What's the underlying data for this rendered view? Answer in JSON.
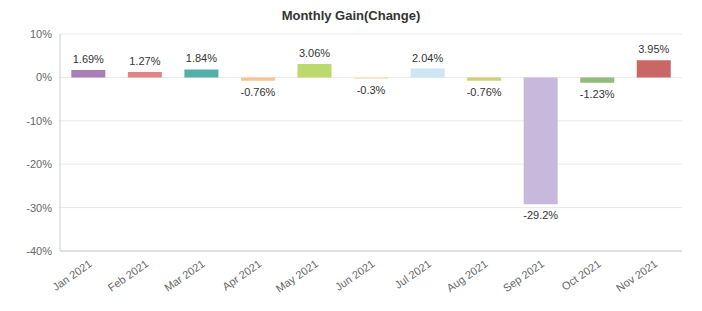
{
  "chart_data": {
    "type": "bar",
    "title": "Monthly Gain(Change)",
    "categories": [
      "Jan 2021",
      "Feb 2021",
      "Mar 2021",
      "Apr 2021",
      "May 2021",
      "Jun 2021",
      "Jul 2021",
      "Aug 2021",
      "Sep 2021",
      "Oct 2021",
      "Nov 2021"
    ],
    "values": [
      1.69,
      1.27,
      1.84,
      -0.76,
      3.06,
      -0.3,
      2.04,
      -0.76,
      -29.2,
      -1.23,
      3.95
    ],
    "value_labels": [
      "1.69%",
      "1.27%",
      "1.84%",
      "-0.76%",
      "3.06%",
      "-0.3%",
      "2.04%",
      "-0.76%",
      "-29.2%",
      "-1.23%",
      "3.95%"
    ],
    "colors": [
      "#a97fb3",
      "#e08583",
      "#52b0a9",
      "#f7c493",
      "#bcd96d",
      "#ebe3a6",
      "#cce6f5",
      "#cfcf78",
      "#c6b9dc",
      "#92bb7c",
      "#c96767"
    ],
    "ylim": [
      -40,
      10
    ],
    "yticks": [
      {
        "value": -40,
        "label": "-40%"
      },
      {
        "value": -30,
        "label": "-30%"
      },
      {
        "value": -20,
        "label": "-20%"
      },
      {
        "value": -10,
        "label": "-10%"
      },
      {
        "value": 0,
        "label": "0%"
      },
      {
        "value": 10,
        "label": "10%"
      }
    ],
    "grid": true,
    "data_labels": true
  }
}
